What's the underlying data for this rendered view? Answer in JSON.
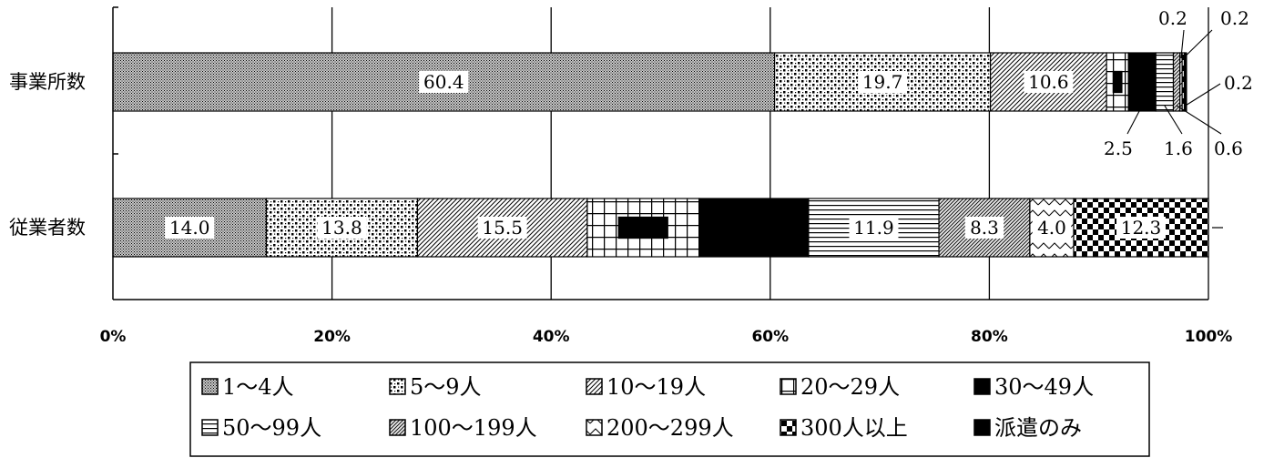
{
  "chart_data": {
    "type": "bar",
    "orientation": "horizontal",
    "stacked": true,
    "percent": true,
    "xlim": [
      0,
      100
    ],
    "x_ticks": [
      "0%",
      "20%",
      "40%",
      "60%",
      "80%",
      "100%"
    ],
    "grid": true,
    "legend_position": "bottom",
    "categories": [
      "事業所数",
      "従業者数"
    ],
    "series": [
      {
        "name": "1～4人",
        "values": [
          60.4,
          14.0
        ],
        "pattern": "dense-dots",
        "labels": [
          "60.4",
          "14.0"
        ]
      },
      {
        "name": "5～9人",
        "values": [
          19.7,
          13.8
        ],
        "pattern": "coarse-dots",
        "labels": [
          "19.7",
          "13.8"
        ]
      },
      {
        "name": "10～19人",
        "values": [
          10.6,
          15.5
        ],
        "pattern": "diagonal",
        "labels": [
          "10.6",
          "15.5"
        ]
      },
      {
        "name": "20～29人",
        "values": [
          2.0,
          10.2
        ],
        "pattern": "grid",
        "labels": [
          "",
          ""
        ]
      },
      {
        "name": "30～49人",
        "values": [
          2.5,
          10.0
        ],
        "pattern": "solid",
        "labels": [
          "2.5",
          ""
        ]
      },
      {
        "name": "50～99人",
        "values": [
          1.6,
          11.9
        ],
        "pattern": "horizontal",
        "labels": [
          "1.6",
          "11.9"
        ]
      },
      {
        "name": "100～199人",
        "values": [
          0.6,
          8.3
        ],
        "pattern": "diagonal-fine",
        "labels": [
          "0.6",
          "8.3"
        ]
      },
      {
        "name": "200～299人",
        "values": [
          0.2,
          4.0
        ],
        "pattern": "zigzag",
        "labels": [
          "0.2",
          "4.0"
        ]
      },
      {
        "name": "300人以上",
        "values": [
          0.2,
          12.3
        ],
        "pattern": "checker",
        "labels": [
          "0.2",
          "12.3"
        ]
      },
      {
        "name": "派遣のみ",
        "values": [
          0.2,
          0.0
        ],
        "pattern": "solid",
        "labels": [
          "0.2",
          ""
        ]
      }
    ]
  }
}
